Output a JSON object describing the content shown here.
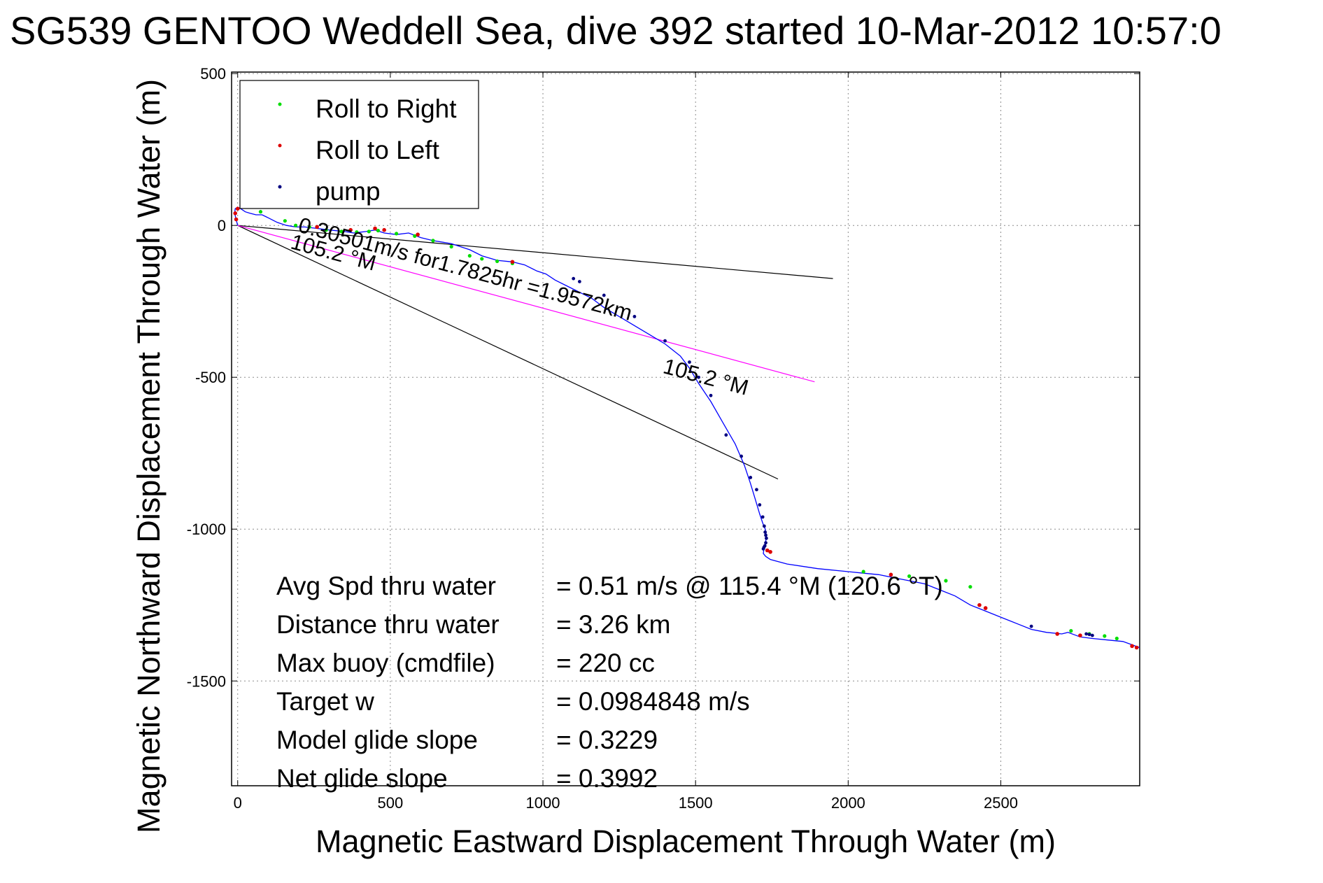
{
  "chart_data": {
    "type": "scatter",
    "title": "SG539 GENTOO Weddell Sea, dive 392 started 10-Mar-2012 10:57:0",
    "xlabel": "Magnetic Eastward Displacement Through Water (m)",
    "ylabel": "Magnetic Northward Displacement Through Water (m)",
    "xlim": [
      -20,
      2955
    ],
    "ylim": [
      -1845,
      505
    ],
    "xticks": [
      0,
      500,
      1000,
      1500,
      2000,
      2500
    ],
    "yticks": [
      500,
      0,
      -500,
      -1000,
      -1500
    ],
    "grid": true,
    "legend_position": "top-left",
    "legend": [
      {
        "label": "Roll to Right",
        "color": "#00dd00"
      },
      {
        "label": "Roll to Left",
        "color": "#dd0000"
      },
      {
        "label": "pump",
        "color": "#000080"
      }
    ],
    "track": {
      "color": "#0000ff",
      "x": [
        0,
        -5,
        -10,
        -8,
        0,
        10,
        25,
        40,
        60,
        80,
        100,
        130,
        160,
        190,
        220,
        260,
        300,
        350,
        380,
        420,
        450,
        480,
        520,
        560,
        600,
        640,
        700,
        760,
        800,
        850,
        900,
        940,
        980,
        1010,
        1040,
        1080,
        1120,
        1160,
        1200,
        1250,
        1300,
        1350,
        1400,
        1450,
        1480,
        1510,
        1550,
        1590,
        1630,
        1660,
        1680,
        1695,
        1710,
        1720,
        1728,
        1732,
        1730,
        1725,
        1722,
        1730,
        1745,
        1800,
        1900,
        2000,
        2050,
        2100,
        2150,
        2200,
        2250,
        2300,
        2350,
        2400,
        2450,
        2500,
        2550,
        2600,
        2650,
        2700,
        2720,
        2760,
        2800,
        2850,
        2900,
        2955
      ],
      "y": [
        0,
        20,
        40,
        55,
        60,
        55,
        45,
        40,
        35,
        35,
        25,
        10,
        0,
        -5,
        -5,
        -10,
        -15,
        -20,
        -25,
        -20,
        -15,
        -25,
        -30,
        -25,
        -40,
        -50,
        -60,
        -80,
        -100,
        -115,
        -120,
        -130,
        -150,
        -160,
        -180,
        -200,
        -220,
        -240,
        -270,
        -300,
        -330,
        -360,
        -390,
        -430,
        -470,
        -520,
        -580,
        -650,
        -720,
        -790,
        -850,
        -900,
        -950,
        -980,
        -1000,
        -1020,
        -1040,
        -1060,
        -1080,
        -1090,
        -1100,
        -1115,
        -1130,
        -1140,
        -1145,
        -1150,
        -1160,
        -1170,
        -1180,
        -1200,
        -1220,
        -1250,
        -1270,
        -1290,
        -1310,
        -1330,
        -1340,
        -1345,
        -1340,
        -1355,
        -1360,
        -1365,
        -1370,
        -1390
      ]
    },
    "roll_right_points": {
      "x": [
        75,
        155,
        190,
        235,
        290,
        340,
        390,
        430,
        460,
        520,
        580,
        640,
        700,
        760,
        800,
        850,
        900,
        2050,
        2200,
        2320,
        2400,
        2730,
        2790,
        2840,
        2880
      ],
      "y": [
        45,
        15,
        0,
        -5,
        -15,
        -20,
        -22,
        -20,
        -17,
        -27,
        -35,
        -50,
        -70,
        -100,
        -110,
        -118,
        -125,
        -1140,
        -1155,
        -1170,
        -1190,
        -1335,
        -1345,
        -1352,
        -1360
      ]
    },
    "roll_left_points": {
      "x": [
        -8,
        -5,
        0,
        260,
        370,
        450,
        480,
        590,
        900,
        1735,
        1745,
        2140,
        2430,
        2450,
        2685,
        2760,
        2930,
        2945
      ],
      "y": [
        40,
        20,
        55,
        -5,
        -15,
        -10,
        -15,
        -30,
        -120,
        -1070,
        -1075,
        -1150,
        -1250,
        -1260,
        -1345,
        -1350,
        -1385,
        -1390
      ]
    },
    "pump_points": {
      "x": [
        1100,
        1120,
        1200,
        1300,
        1400,
        1480,
        1510,
        1550,
        1600,
        1650,
        1680,
        1700,
        1710,
        1720,
        1725,
        1728,
        1730,
        1732,
        1730,
        1727,
        1724,
        1722,
        2600,
        2780,
        2790,
        2800
      ],
      "y": [
        -175,
        -185,
        -230,
        -300,
        -380,
        -450,
        -500,
        -560,
        -690,
        -760,
        -830,
        -870,
        -920,
        -960,
        -990,
        -1010,
        -1020,
        -1030,
        -1045,
        -1055,
        -1060,
        -1065,
        -1320,
        -1345,
        -1347,
        -1350
      ]
    },
    "reference_lines": [
      {
        "color": "#000000",
        "x": [
          0,
          1950
        ],
        "y": [
          0,
          -175
        ]
      },
      {
        "color": "#000000",
        "x": [
          0,
          1770
        ],
        "y": [
          0,
          -835
        ]
      },
      {
        "color": "#ff00ff",
        "x": [
          0,
          1890
        ],
        "y": [
          0,
          -515
        ]
      }
    ],
    "annotations": [
      {
        "text": "0.30501m/s for1.7825hr =1.9572km",
        "x": 195,
        "y": -20,
        "rotation_deg": 15
      },
      {
        "text": "105.2 °M",
        "x": 170,
        "y": -75,
        "rotation_deg": 15
      },
      {
        "text": "105.2 °M",
        "x": 1390,
        "y": -485,
        "rotation_deg": 15
      }
    ]
  },
  "stats": [
    {
      "label": "Avg Spd thru water",
      "value": "=  0.51 m/s @ 115.4 °M (120.6 °T)"
    },
    {
      "label": "Distance thru water",
      "value": "=  3.26 km"
    },
    {
      "label": "Max buoy (cmdfile)",
      "value": "= 220 cc"
    },
    {
      "label": "Target w",
      "value": "= 0.0984848 m/s"
    },
    {
      "label": "Model glide slope",
      "value": "= 0.3229"
    },
    {
      "label": "Net glide slope",
      "value": "= 0.3992"
    }
  ],
  "colors": {
    "track": "#0000ff",
    "roll_right": "#00dd00",
    "roll_left": "#dd0000",
    "pump": "#000080",
    "axes": "#000000",
    "grid": "#8c8c8c"
  }
}
